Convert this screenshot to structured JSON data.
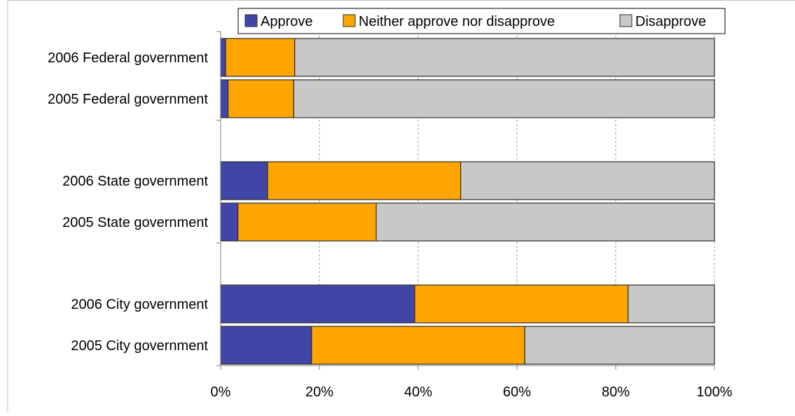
{
  "chart_data": {
    "type": "bar",
    "orientation": "horizontal",
    "stacked": "percent",
    "categories": [
      "2006 Federal government",
      "2005 Federal government",
      "2006 State government",
      "2005 State government",
      "2006 City government",
      "2005 City government"
    ],
    "series": [
      {
        "name": "Approve",
        "color": "#4145a6",
        "values": [
          1,
          1.5,
          9.5,
          3.5,
          39.3,
          18.4
        ]
      },
      {
        "name": "Neither approve nor disapprove",
        "color": "#ffa500",
        "values": [
          14,
          13.3,
          39.1,
          28,
          43.2,
          43.2
        ]
      },
      {
        "name": "Disapprove",
        "color": "#c8c8c8",
        "values": [
          85,
          85.2,
          51.4,
          68.5,
          17.5,
          38.4
        ]
      }
    ],
    "xlim": [
      0,
      100
    ],
    "xticks": [
      "0%",
      "20%",
      "40%",
      "60%",
      "80%",
      "100%"
    ],
    "grid": "vertical-dashed",
    "legend_position": "top",
    "title": "",
    "xlabel": "",
    "ylabel": ""
  }
}
